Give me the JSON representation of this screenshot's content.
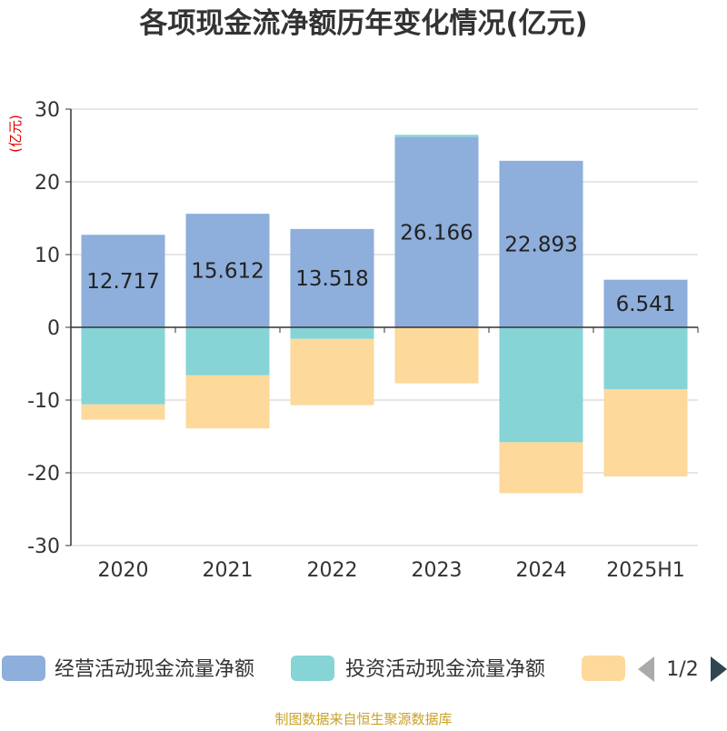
{
  "chart_data": {
    "type": "bar",
    "stacked": true,
    "title": "各项现金流净额历年变化情况(亿元)",
    "ylabel": "(亿元)",
    "ylim": [
      -30,
      30
    ],
    "yticks": [
      30,
      20,
      10,
      0,
      -10,
      -20,
      -30
    ],
    "categories": [
      "2020",
      "2021",
      "2022",
      "2023",
      "2024",
      "2025H1"
    ],
    "series": [
      {
        "name": "经营活动现金流量净额",
        "color": "#8eaedb",
        "values": [
          12.717,
          15.612,
          13.518,
          26.166,
          22.893,
          6.541
        ],
        "labels": [
          "12.717",
          "15.612",
          "13.518",
          "26.166",
          "22.893",
          "6.541"
        ]
      },
      {
        "name": "投资活动现金流量净额",
        "color": "#86d4d6",
        "values": [
          -10.6,
          -6.6,
          -1.6,
          0.3,
          -15.8,
          -8.5
        ]
      },
      {
        "name": "",
        "color": "#fdd99b",
        "values": [
          -2.1,
          -7.3,
          -9.1,
          -7.7,
          -7.0,
          -12.0
        ]
      }
    ],
    "legend": {
      "position": "bottom",
      "page": "1/2"
    },
    "grid": true
  },
  "footer": {
    "source": "制图数据来自恒生聚源数据库"
  }
}
